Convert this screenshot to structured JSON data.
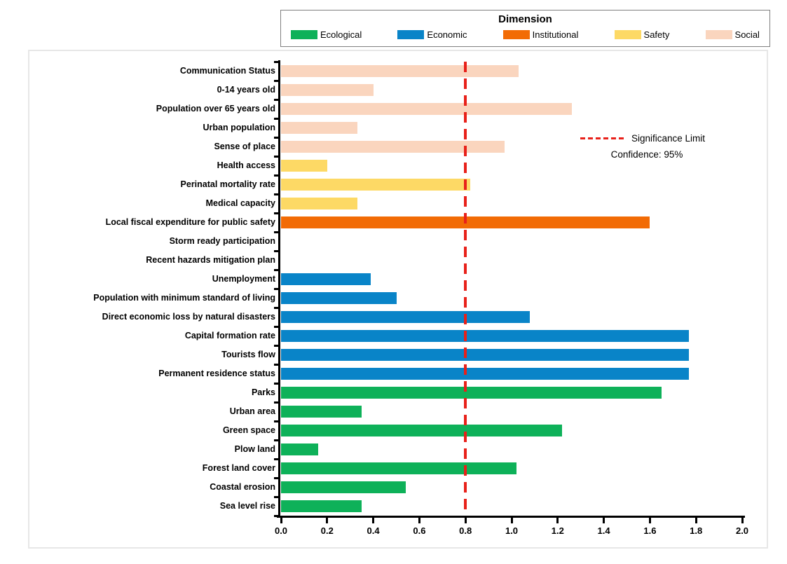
{
  "legend": {
    "title": "Dimension",
    "entries": [
      {
        "label": "Ecological",
        "color": "#0EB159"
      },
      {
        "label": "Economic",
        "color": "#0984C8"
      },
      {
        "label": "Institutional",
        "color": "#F26B05"
      },
      {
        "label": "Safety",
        "color": "#FDD965"
      },
      {
        "label": "Social",
        "color": "#FAD5BE"
      }
    ]
  },
  "annotation": {
    "line1": "Significance Limit",
    "line2": "Confidence: 95%",
    "line_color": "#E8211A"
  },
  "chart_data": {
    "type": "bar",
    "orientation": "horizontal",
    "title": "",
    "xlabel": "",
    "ylabel": "",
    "xlim": [
      0.0,
      2.0
    ],
    "xticks": [
      "0.0",
      "0.2",
      "0.4",
      "0.6",
      "0.8",
      "1.0",
      "1.2",
      "1.4",
      "1.6",
      "1.8",
      "2.0"
    ],
    "grid": false,
    "legend_position": "top",
    "significance_limit": 0.8,
    "dimension_colors": {
      "Ecological": "#0EB159",
      "Economic": "#0984C8",
      "Institutional": "#F26B05",
      "Safety": "#FDD965",
      "Social": "#FAD5BE"
    },
    "bars": [
      {
        "label": "Communication Status",
        "dimension": "Social",
        "value": 1.03
      },
      {
        "label": "0-14 years old",
        "dimension": "Social",
        "value": 0.4
      },
      {
        "label": "Population over 65 years old",
        "dimension": "Social",
        "value": 1.26
      },
      {
        "label": "Urban population",
        "dimension": "Social",
        "value": 0.33
      },
      {
        "label": "Sense of place",
        "dimension": "Social",
        "value": 0.97
      },
      {
        "label": "Health access",
        "dimension": "Safety",
        "value": 0.2
      },
      {
        "label": "Perinatal mortality rate",
        "dimension": "Safety",
        "value": 0.82
      },
      {
        "label": "Medical capacity",
        "dimension": "Safety",
        "value": 0.33
      },
      {
        "label": "Local fiscal expenditure for public safety",
        "dimension": "Institutional",
        "value": 1.6
      },
      {
        "label": "Storm ready participation",
        "dimension": "Institutional",
        "value": 0.0
      },
      {
        "label": "Recent hazards mitigation plan",
        "dimension": "Institutional",
        "value": 0.0
      },
      {
        "label": "Unemployment",
        "dimension": "Economic",
        "value": 0.39
      },
      {
        "label": "Population with minimum standard of living",
        "dimension": "Economic",
        "value": 0.5
      },
      {
        "label": "Direct economic loss by natural disasters",
        "dimension": "Economic",
        "value": 1.08
      },
      {
        "label": "Capital formation rate",
        "dimension": "Economic",
        "value": 1.77
      },
      {
        "label": "Tourists flow",
        "dimension": "Economic",
        "value": 1.77
      },
      {
        "label": "Permanent residence status",
        "dimension": "Economic",
        "value": 1.77
      },
      {
        "label": "Parks",
        "dimension": "Ecological",
        "value": 1.65
      },
      {
        "label": "Urban area",
        "dimension": "Ecological",
        "value": 0.35
      },
      {
        "label": "Green space",
        "dimension": "Ecological",
        "value": 1.22
      },
      {
        "label": "Plow land",
        "dimension": "Ecological",
        "value": 0.16
      },
      {
        "label": "Forest land cover",
        "dimension": "Ecological",
        "value": 1.02
      },
      {
        "label": "Coastal erosion",
        "dimension": "Ecological",
        "value": 0.54
      },
      {
        "label": "Sea level rise",
        "dimension": "Ecological",
        "value": 0.35
      }
    ]
  }
}
